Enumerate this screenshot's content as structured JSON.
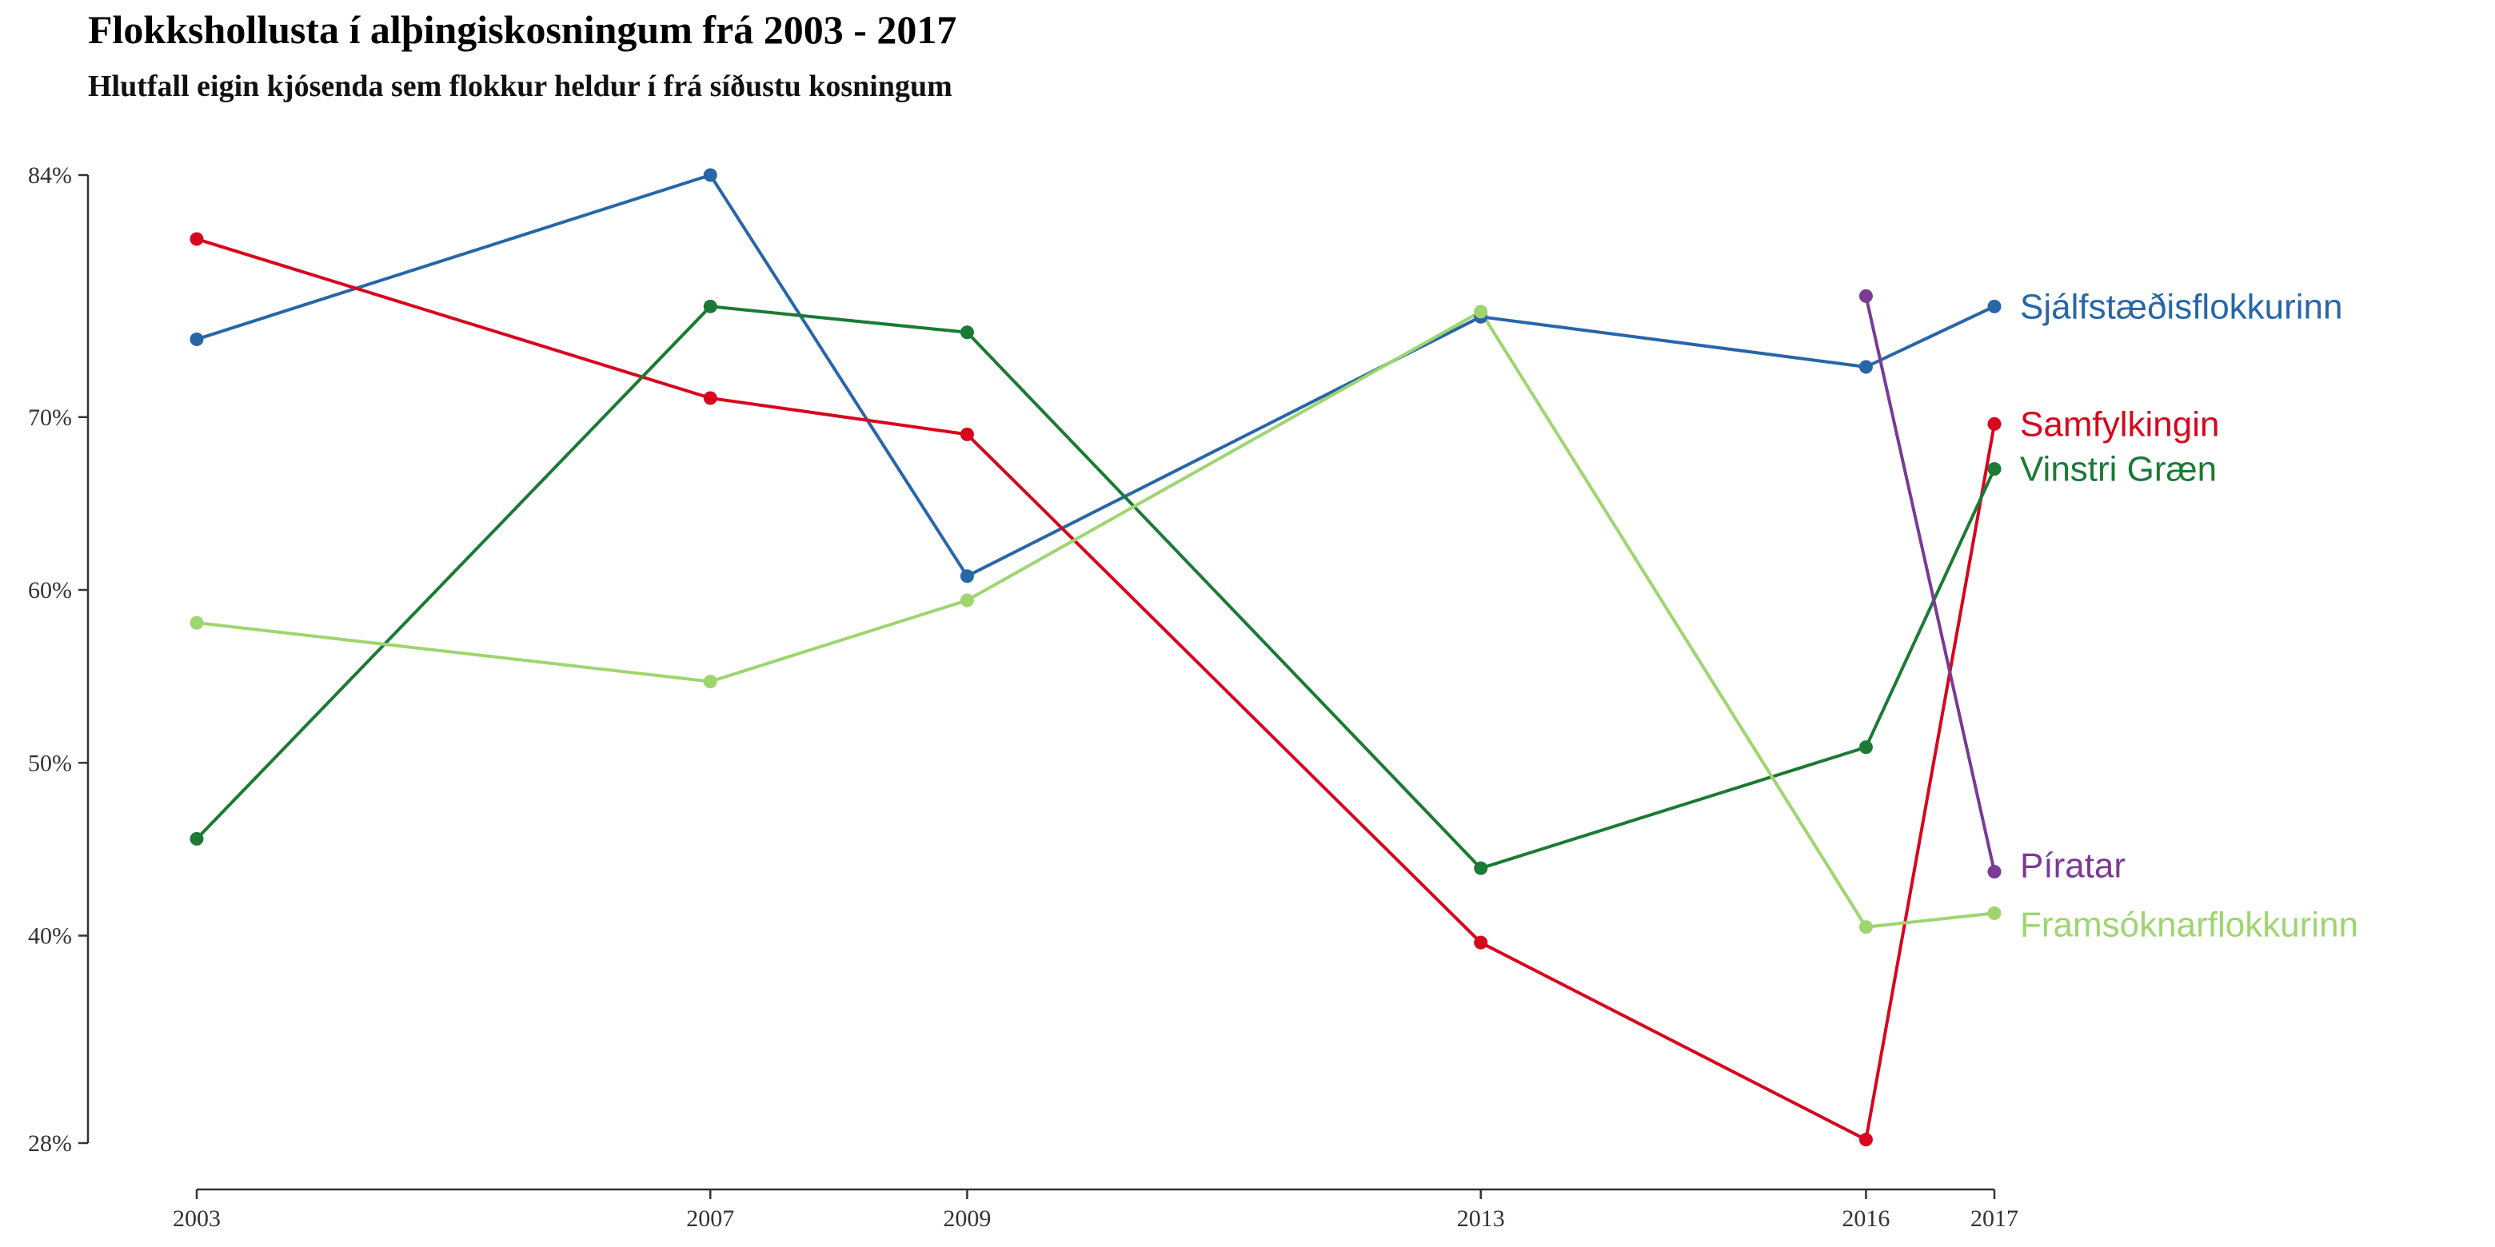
{
  "chart_data": {
    "type": "line",
    "title": "Flokkshollusta í alþingiskosningum frá 2003 - 2017",
    "subtitle": "Hlutfall eigin kjósenda sem flokkur heldur í frá síðustu kosningum",
    "xlabel": "",
    "ylabel": "",
    "x": [
      2003,
      2007,
      2009,
      2013,
      2016,
      2017
    ],
    "xlim": [
      2003,
      2017
    ],
    "ylim": [
      28,
      84
    ],
    "y_ticks": [
      28,
      40,
      50,
      60,
      70,
      84
    ],
    "y_tick_labels": [
      "28%",
      "40%",
      "50%",
      "60%",
      "70%",
      "84%"
    ],
    "x_ticks": [
      2003,
      2007,
      2009,
      2013,
      2016,
      2017
    ],
    "x_tick_labels": [
      "2003",
      "2007",
      "2009",
      "2013",
      "2016",
      "2017"
    ],
    "grid": false,
    "legend": "direct labels at line ends (right)",
    "series": [
      {
        "name": "Sjálfstæðisflokkurinn",
        "color": "#2766a8",
        "points": [
          [
            2003,
            74.5
          ],
          [
            2007,
            84.0
          ],
          [
            2009,
            60.8
          ],
          [
            2013,
            75.8
          ],
          [
            2016,
            72.9
          ],
          [
            2017,
            76.4
          ]
        ]
      },
      {
        "name": "Samfylkingin",
        "color": "#d7061e",
        "points": [
          [
            2003,
            80.3
          ],
          [
            2007,
            71.1
          ],
          [
            2009,
            69.0
          ],
          [
            2013,
            39.6
          ],
          [
            2016,
            28.2
          ],
          [
            2017,
            69.6
          ]
        ]
      },
      {
        "name": "Vinstri Græn",
        "color": "#1b7a35",
        "points": [
          [
            2003,
            45.6
          ],
          [
            2007,
            76.4
          ],
          [
            2009,
            74.9
          ],
          [
            2013,
            43.9
          ],
          [
            2016,
            50.9
          ],
          [
            2017,
            67.0
          ]
        ]
      },
      {
        "name": "Píratar",
        "color": "#7b3a96",
        "points": [
          [
            2016,
            77.0
          ],
          [
            2017,
            43.7
          ]
        ]
      },
      {
        "name": "Framsóknarflokkurinn",
        "color": "#9ed56f",
        "points": [
          [
            2003,
            58.1
          ],
          [
            2007,
            54.7
          ],
          [
            2009,
            59.4
          ],
          [
            2013,
            76.1
          ],
          [
            2016,
            40.5
          ],
          [
            2017,
            41.3
          ]
        ]
      }
    ]
  }
}
